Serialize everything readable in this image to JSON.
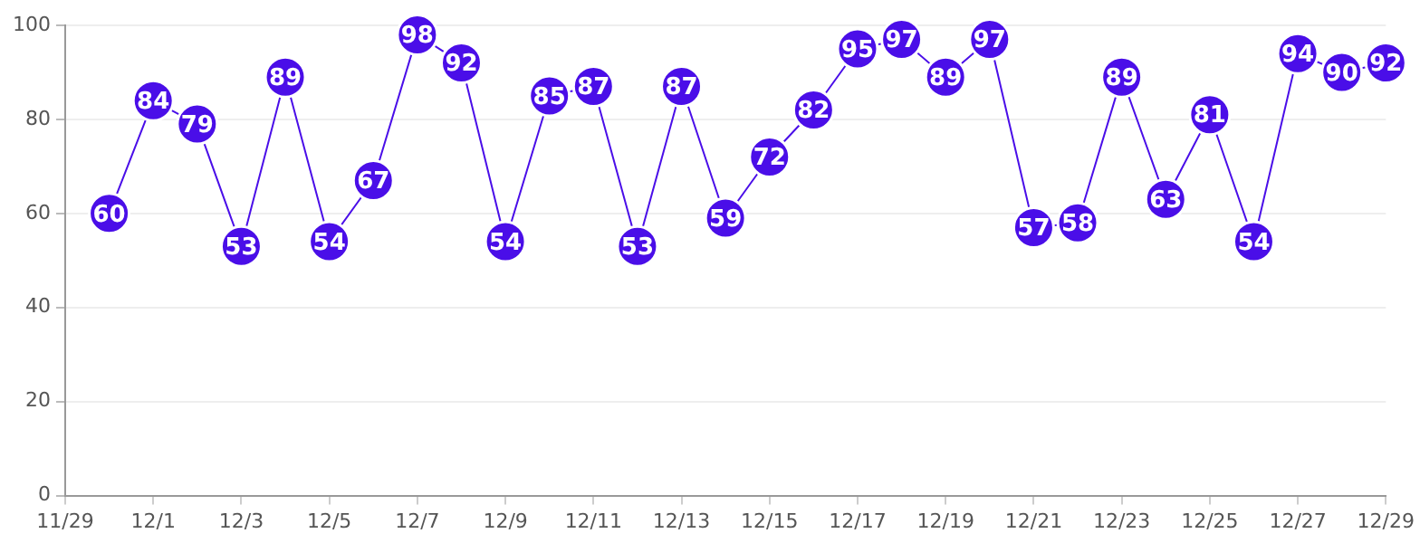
{
  "chart_data": {
    "type": "line",
    "x": [
      "--11-30",
      "--12-01",
      "--12-02",
      "--12-03",
      "--12-04",
      "--12-05",
      "--12-06",
      "--12-07",
      "--12-08",
      "--12-09",
      "--12-10",
      "--12-11",
      "--12-12",
      "--12-13",
      "--12-14",
      "--12-15",
      "--12-16",
      "--12-17",
      "--12-18",
      "--12-19",
      "--12-20",
      "--12-21",
      "--12-22",
      "--12-23",
      "--12-24",
      "--12-25",
      "--12-26",
      "--12-27",
      "--12-28",
      "--12-29"
    ],
    "series": [
      {
        "color": "#4a0ee8",
        "values": [
          60,
          84,
          79,
          53,
          89,
          54,
          67,
          98,
          92,
          54,
          85,
          87,
          53,
          87,
          59,
          72,
          82,
          95,
          97,
          89,
          97,
          57,
          58,
          89,
          63,
          81,
          54,
          94,
          90,
          92
        ]
      }
    ],
    "xlim": [
      "--11-29",
      "--12-29"
    ],
    "xticks": [
      {
        "value": "--11-29",
        "label": "11/29"
      },
      {
        "value": "--12-01",
        "label": "12/1"
      },
      {
        "value": "--12-03",
        "label": "12/3"
      },
      {
        "value": "--12-05",
        "label": "12/5"
      },
      {
        "value": "--12-07",
        "label": "12/7"
      },
      {
        "value": "--12-09",
        "label": "12/9"
      },
      {
        "value": "--12-11",
        "label": "12/11"
      },
      {
        "value": "--12-13",
        "label": "12/13"
      },
      {
        "value": "--12-15",
        "label": "12/15"
      },
      {
        "value": "--12-17",
        "label": "12/17"
      },
      {
        "value": "--12-19",
        "label": "12/19"
      },
      {
        "value": "--12-21",
        "label": "12/21"
      },
      {
        "value": "--12-23",
        "label": "12/23"
      },
      {
        "value": "--12-25",
        "label": "12/25"
      },
      {
        "value": "--12-27",
        "label": "12/27"
      },
      {
        "value": "--12-29",
        "label": "12/29"
      }
    ],
    "ylim": [
      0,
      100
    ],
    "yticks": [
      0,
      20,
      40,
      60,
      80,
      100
    ],
    "grid": "y",
    "marker": "circle",
    "line_style": "solid",
    "data_labels": true,
    "legend": false
  }
}
